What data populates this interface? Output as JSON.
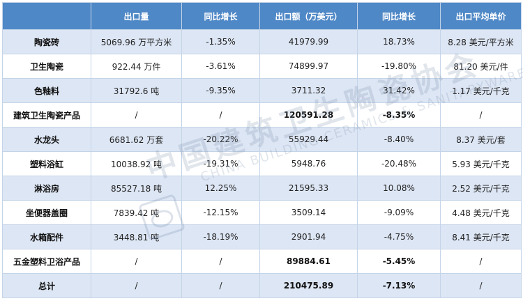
{
  "table": {
    "headers": [
      "",
      "出口量",
      "同比增长",
      "出口额（万美元）",
      "同比增长",
      "出口平均单价"
    ],
    "rows": [
      {
        "name": "陶瓷砖",
        "qty": "5069.96 万平方米",
        "qty_yoy": "-1.35%",
        "value": "41979.99",
        "value_yoy": "18.73%",
        "price": "8.28 美元/平方米"
      },
      {
        "name": "卫生陶瓷",
        "qty": "922.44 万件",
        "qty_yoy": "-3.61%",
        "value": "74899.97",
        "value_yoy": "-19.80%",
        "price": "81.20 美元/件"
      },
      {
        "name": "色釉料",
        "qty": "31792.6 吨",
        "qty_yoy": "-9.35%",
        "value": "3711.32",
        "value_yoy": "31.42%",
        "price": "1.17 美元/千克"
      },
      {
        "name": "建筑卫生陶瓷产品",
        "qty": "/",
        "qty_yoy": "/",
        "value": "120591.28",
        "value_yoy": "-8.35%",
        "price": "/"
      },
      {
        "name": "水龙头",
        "qty": "6681.62 万套",
        "qty_yoy": "-20.22%",
        "value": "55929.44",
        "value_yoy": "-8.40%",
        "price": "8.37 美元/套"
      },
      {
        "name": "塑料浴缸",
        "qty": "10038.92 吨",
        "qty_yoy": "-19.31%",
        "value": "5948.76",
        "value_yoy": "-20.48%",
        "price": "5.93 美元/千克"
      },
      {
        "name": "淋浴房",
        "qty": "85527.18 吨",
        "qty_yoy": "12.25%",
        "value": "21595.33",
        "value_yoy": "10.08%",
        "price": "2.52 美元/千克"
      },
      {
        "name": "坐便器盖圈",
        "qty": "7839.42 吨",
        "qty_yoy": "-12.15%",
        "value": "3509.14",
        "value_yoy": "-9.09%",
        "price": "4.48 美元/千克"
      },
      {
        "name": "水箱配件",
        "qty": "3448.81 吨",
        "qty_yoy": "-18.19%",
        "value": "2901.94",
        "value_yoy": "-4.75%",
        "price": "8.41 美元/千克"
      },
      {
        "name": "五金塑料卫浴产品",
        "qty": "/",
        "qty_yoy": "/",
        "value": "89884.61",
        "value_yoy": "-5.45%",
        "price": "/"
      },
      {
        "name": "总计",
        "qty": "/",
        "qty_yoy": "/",
        "value": "210475.89",
        "value_yoy": "-7.13%",
        "price": "/"
      }
    ]
  },
  "watermark": {
    "zh": "中国建筑卫生陶瓷协会",
    "en": "CHINA BUILDING CERAMICS & SANITARYWARE ASSOCIATION"
  }
}
